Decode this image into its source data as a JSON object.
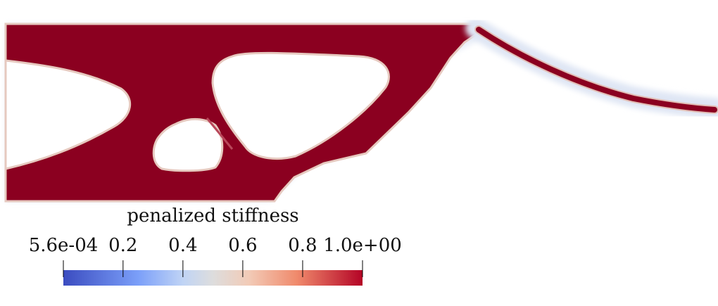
{
  "colorbar": {
    "title": "penalized stiffness",
    "tick_labels": [
      "5.6e-04",
      "0.2",
      "0.4",
      "0.6",
      "0.8",
      "1.0e+00"
    ],
    "tick_values": [
      0.00056,
      0.2,
      0.4,
      0.6,
      0.8,
      1.0
    ],
    "range": [
      0.00056,
      1.0
    ],
    "colormap": "cool-to-warm",
    "colors": {
      "low": "#3b4cc0",
      "mid_low": "#aac6fd",
      "mid": "#dddddd",
      "mid_high": "#f5a081",
      "high": "#b40426"
    }
  },
  "field": {
    "solid_color": "#8b0020",
    "void_color": "#ffffff",
    "edge_color": "#e8d3c8",
    "halo_color": "#dfe7f5"
  }
}
